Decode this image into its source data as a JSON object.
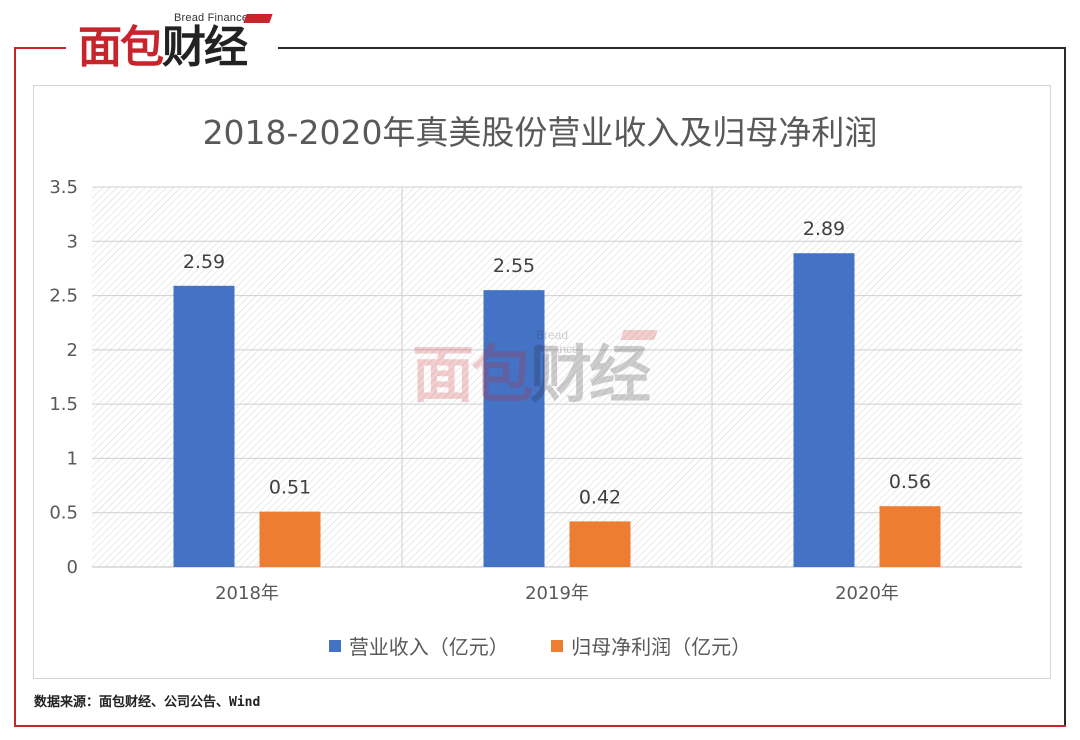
{
  "brand": {
    "logo_text_red": "面包",
    "logo_text_dark": "财经",
    "logo_sub": "Bread Finance",
    "accent_color": "#c8242b"
  },
  "source_note": "数据来源：面包财经、公司公告、Wind",
  "chart_data": {
    "type": "bar",
    "title": "2018-2020年真美股份营业收入及归母净利润",
    "categories": [
      "2018年",
      "2019年",
      "2020年"
    ],
    "series": [
      {
        "name": "营业收入（亿元）",
        "values": [
          2.59,
          2.55,
          2.89
        ],
        "color": "#4472c4"
      },
      {
        "name": "归母净利润（亿元）",
        "values": [
          0.51,
          0.42,
          0.56
        ],
        "color": "#ed7d31"
      }
    ],
    "ylim": [
      0,
      3.5
    ],
    "yticks": [
      "0",
      "0.5",
      "1",
      "1.5",
      "2",
      "2.5",
      "3",
      "3.5"
    ],
    "data_labels": [
      [
        "2.59",
        "2.55",
        "2.89"
      ],
      [
        "0.51",
        "0.42",
        "0.56"
      ]
    ],
    "grid": true,
    "legend_position": "bottom"
  }
}
